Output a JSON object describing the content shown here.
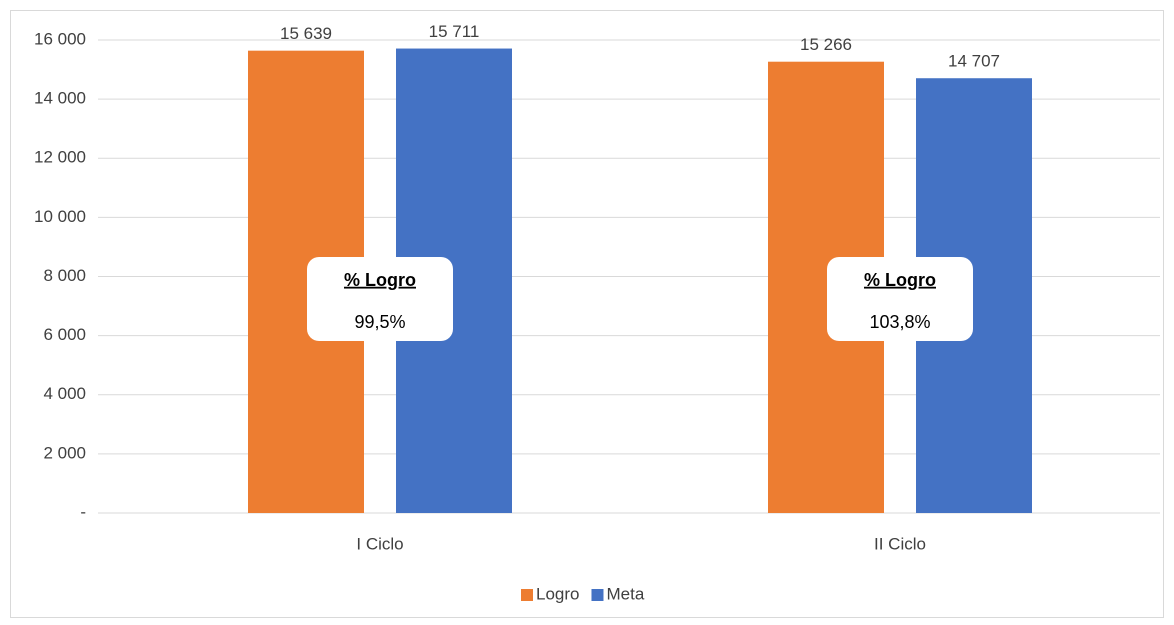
{
  "chart_data": {
    "type": "bar",
    "categories": [
      "I Ciclo",
      "II Ciclo"
    ],
    "series": [
      {
        "name": "Logro",
        "color": "#ed7d31",
        "values": [
          15639,
          15266
        ],
        "value_labels": [
          "15 639",
          "15 266"
        ]
      },
      {
        "name": "Meta",
        "color": "#4472c4",
        "values": [
          15711,
          14707
        ],
        "value_labels": [
          "15 711",
          "14 707"
        ]
      }
    ],
    "ylim": [
      0,
      16000
    ],
    "yticks": [
      {
        "value": 0,
        "label": "-"
      },
      {
        "value": 2000,
        "label": "2 000"
      },
      {
        "value": 4000,
        "label": "4 000"
      },
      {
        "value": 6000,
        "label": "6 000"
      },
      {
        "value": 8000,
        "label": "8 000"
      },
      {
        "value": 10000,
        "label": "10 000"
      },
      {
        "value": 12000,
        "label": "12 000"
      },
      {
        "value": 14000,
        "label": "14 000"
      },
      {
        "value": 16000,
        "label": "16 000"
      }
    ],
    "grid": true,
    "legend": "bottom",
    "annotations": [
      {
        "title": "% Logro",
        "text": "99,5%"
      },
      {
        "title": "% Logro",
        "text": "103,8%"
      }
    ]
  }
}
